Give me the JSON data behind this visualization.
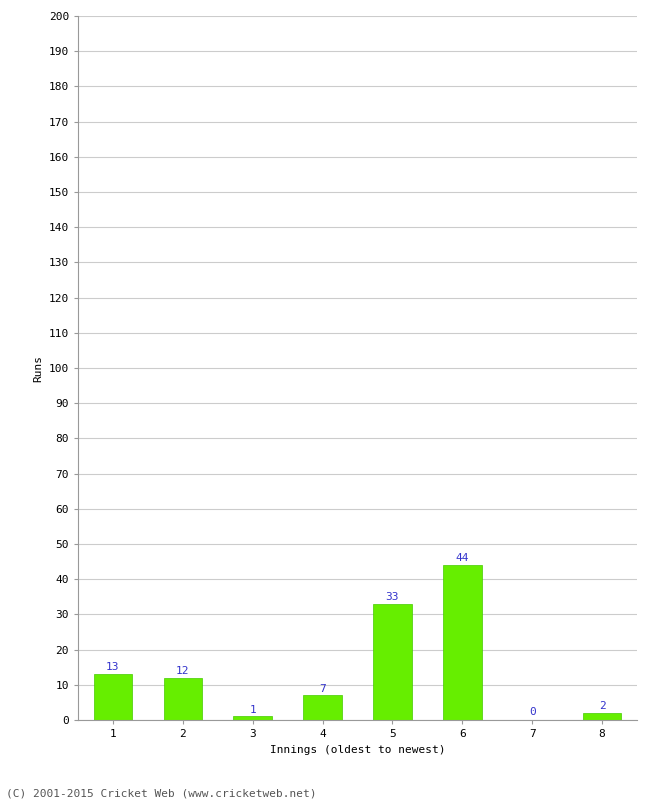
{
  "categories": [
    "1",
    "2",
    "3",
    "4",
    "5",
    "6",
    "7",
    "8"
  ],
  "values": [
    13,
    12,
    1,
    7,
    33,
    44,
    0,
    2
  ],
  "bar_color": "#66ee00",
  "bar_edge_color": "#44cc00",
  "xlabel": "Innings (oldest to newest)",
  "ylabel": "Runs",
  "ylim": [
    0,
    200
  ],
  "yticks": [
    0,
    10,
    20,
    30,
    40,
    50,
    60,
    70,
    80,
    90,
    100,
    110,
    120,
    130,
    140,
    150,
    160,
    170,
    180,
    190,
    200
  ],
  "label_color": "#3333cc",
  "label_fontsize": 8,
  "axis_tick_fontsize": 8,
  "xlabel_fontsize": 8,
  "ylabel_fontsize": 8,
  "footer": "(C) 2001-2015 Cricket Web (www.cricketweb.net)",
  "background_color": "#ffffff",
  "grid_color": "#cccccc",
  "bar_width": 0.55
}
